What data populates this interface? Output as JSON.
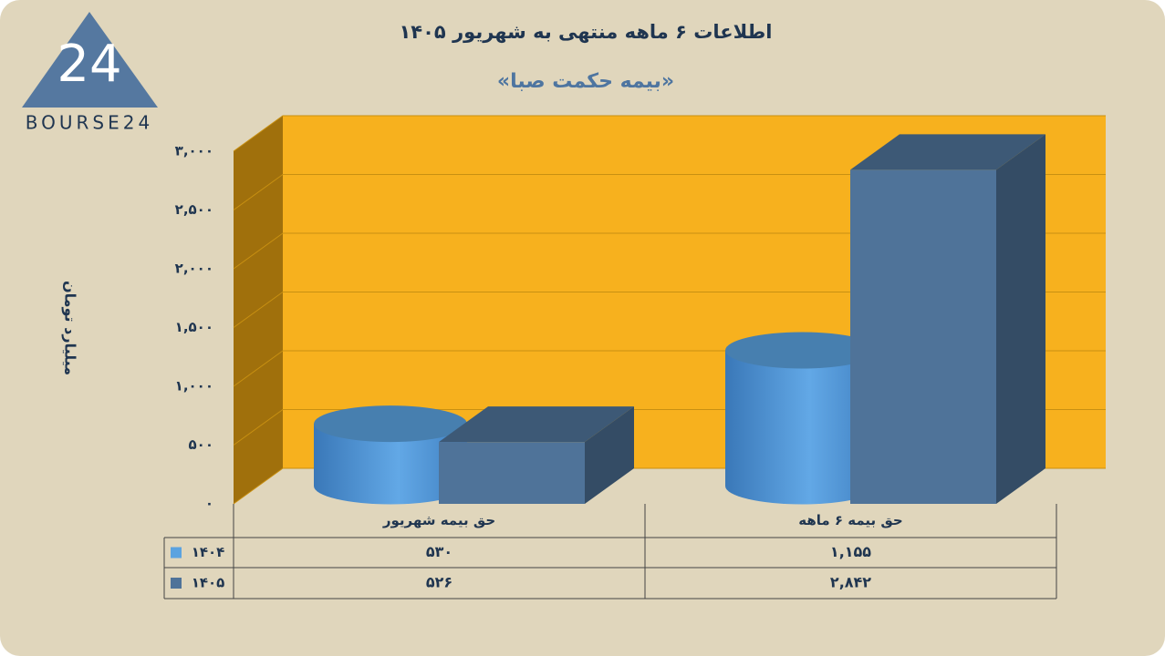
{
  "logo": {
    "mark": "24",
    "text": "BOURSE24"
  },
  "chart_data": {
    "type": "bar3d",
    "title": "اطلاعات ۶ ماهه منتهی به شهریور ۱۴۰۵",
    "subtitle": "«بیمه حکمت صبا»",
    "y_label": "میلیارد تومان",
    "categories": [
      "حق بیمه شهریور",
      "حق بیمه ۶  ماهه"
    ],
    "series": [
      {
        "name": "۱۴۰۴",
        "color": "#5ba3e0",
        "shape": "cylinder",
        "values": [
          530,
          1155
        ],
        "value_labels": [
          "۵۳۰",
          "۱,۱۵۵"
        ]
      },
      {
        "name": "۱۴۰۵",
        "color": "#4f7399",
        "shape": "box",
        "values": [
          526,
          2842
        ],
        "value_labels": [
          "۵۲۶",
          "۲,۸۴۲"
        ]
      }
    ],
    "ylim": [
      0,
      3000
    ],
    "yticks": [
      {
        "value": 0,
        "label": "۰"
      },
      {
        "value": 500,
        "label": "۵۰۰"
      },
      {
        "value": 1000,
        "label": "۱,۰۰۰"
      },
      {
        "value": 1500,
        "label": "۱,۵۰۰"
      },
      {
        "value": 2000,
        "label": "۲,۰۰۰"
      },
      {
        "value": 2500,
        "label": "۲,۵۰۰"
      },
      {
        "value": 3000,
        "label": "۳,۰۰۰"
      }
    ],
    "grid": true
  }
}
